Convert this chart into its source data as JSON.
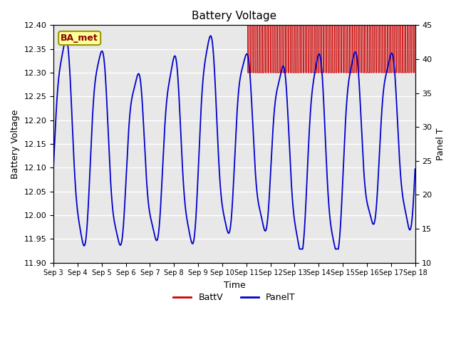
{
  "title": "Battery Voltage",
  "xlabel": "Time",
  "ylabel_left": "Battery Voltage",
  "ylabel_right": "Panel T",
  "ylim_left": [
    11.9,
    12.4
  ],
  "ylim_right": [
    10,
    45
  ],
  "background_color": "#ffffff",
  "plot_bg_color": "#e8e8e8",
  "grid_color": "#ffffff",
  "x_tick_labels": [
    "Sep 3",
    "Sep 4",
    "Sep 5",
    "Sep 6",
    "Sep 7",
    "Sep 8",
    "Sep 9",
    "Sep 10",
    "Sep 11",
    "Sep 12",
    "Sep 13",
    "Sep 14",
    "Sep 15",
    "Sep 16",
    "Sep 17",
    "Sep 18"
  ],
  "battv_color": "#cc0000",
  "panelt_color": "#0000cc",
  "annotation_text": "BA_met",
  "annotation_bg": "#ffff99",
  "annotation_border": "#999900",
  "annotation_text_color": "#8b0000",
  "yticks_left": [
    11.9,
    11.95,
    12.0,
    12.05,
    12.1,
    12.15,
    12.2,
    12.25,
    12.3,
    12.35,
    12.4
  ],
  "yticks_right": [
    10,
    15,
    20,
    25,
    30,
    35,
    40,
    45
  ]
}
